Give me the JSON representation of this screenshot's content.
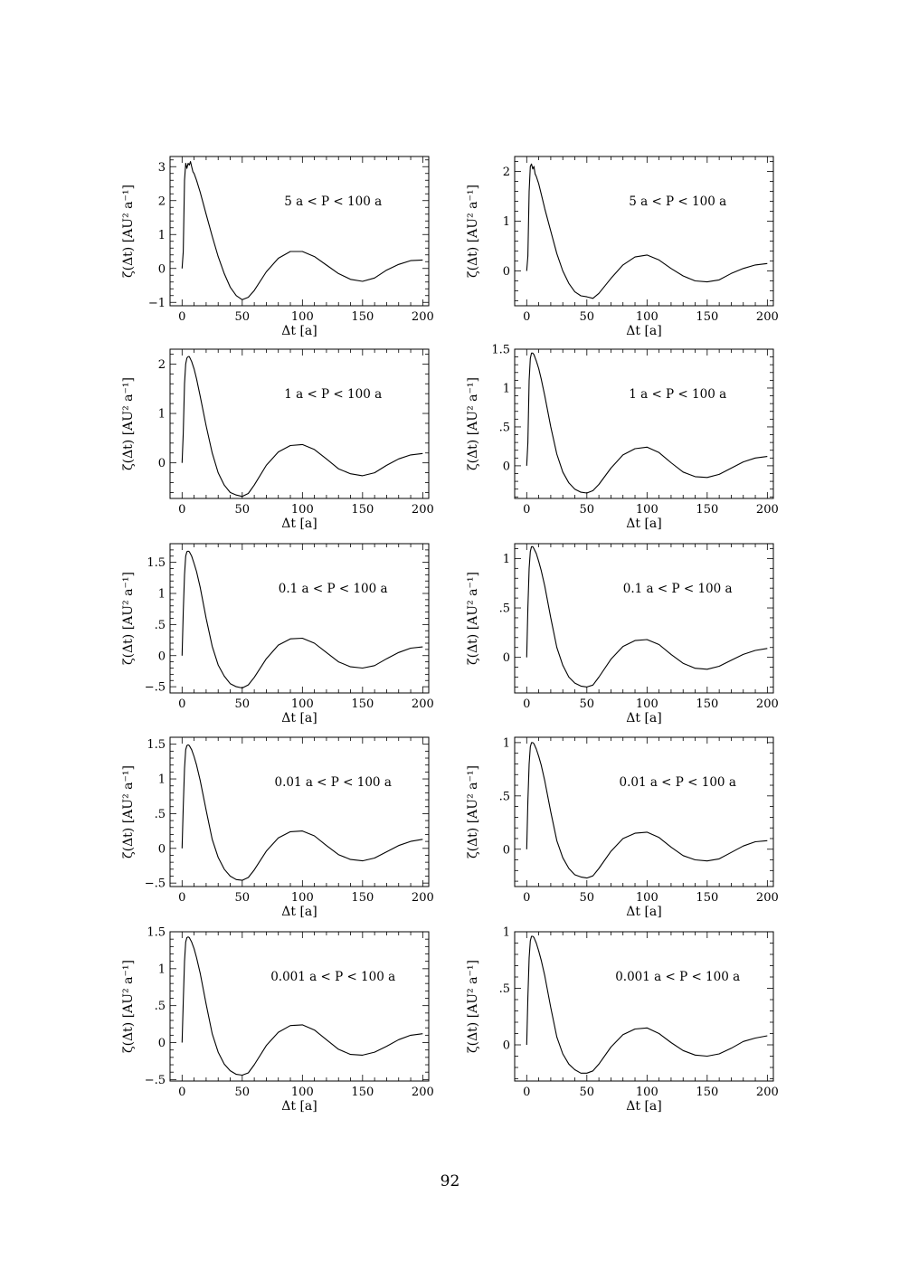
{
  "page": {
    "number": "92"
  },
  "chart_data": [
    {
      "type": "line",
      "annotation": "5 a < P < 100 a",
      "xlabel": "Δt [a]",
      "ylabel": "ζ(Δt) [AU² a⁻¹]",
      "xlim": [
        -10,
        205
      ],
      "ylim": [
        -1.1,
        3.3
      ],
      "xticks": [
        0,
        50,
        100,
        150,
        200
      ],
      "yticks": [
        -1,
        0,
        1,
        2,
        3
      ],
      "ytick_labels": [
        "−1",
        "0",
        "1",
        "2",
        "3"
      ],
      "series": [
        {
          "x": [
            0,
            1,
            2,
            3,
            4,
            5,
            6,
            7,
            8,
            9,
            10,
            12,
            15,
            20,
            25,
            30,
            35,
            40,
            45,
            50,
            55,
            60,
            70,
            80,
            90,
            100,
            110,
            120,
            130,
            140,
            150,
            160,
            170,
            180,
            190,
            200
          ],
          "y": [
            0,
            0.5,
            2.6,
            3.1,
            2.95,
            3.1,
            3.05,
            3.15,
            3.0,
            2.85,
            2.8,
            2.6,
            2.25,
            1.6,
            0.95,
            0.35,
            -0.15,
            -0.55,
            -0.8,
            -0.92,
            -0.85,
            -0.65,
            -0.1,
            0.3,
            0.5,
            0.5,
            0.35,
            0.1,
            -0.15,
            -0.32,
            -0.38,
            -0.28,
            -0.05,
            0.12,
            0.23,
            0.25
          ]
        }
      ]
    },
    {
      "type": "line",
      "annotation": "5 a < P < 100 a",
      "xlabel": "Δt [a]",
      "ylabel": "ζ(Δt) [AU² a⁻¹]",
      "xlim": [
        -10,
        205
      ],
      "ylim": [
        -0.7,
        2.3
      ],
      "xticks": [
        0,
        50,
        100,
        150,
        200
      ],
      "yticks": [
        0,
        1,
        2
      ],
      "ytick_labels": [
        "0",
        "1",
        "2"
      ],
      "series": [
        {
          "x": [
            0,
            1,
            2,
            3,
            4,
            5,
            6,
            7,
            8,
            10,
            12,
            15,
            20,
            25,
            30,
            35,
            40,
            45,
            50,
            55,
            60,
            70,
            80,
            90,
            100,
            110,
            120,
            130,
            140,
            150,
            160,
            170,
            180,
            190,
            200
          ],
          "y": [
            0,
            0.3,
            1.6,
            2.1,
            2.15,
            2.05,
            2.1,
            1.95,
            1.9,
            1.75,
            1.55,
            1.25,
            0.8,
            0.35,
            0.0,
            -0.25,
            -0.42,
            -0.5,
            -0.52,
            -0.55,
            -0.45,
            -0.15,
            0.12,
            0.28,
            0.32,
            0.22,
            0.05,
            -0.1,
            -0.2,
            -0.22,
            -0.18,
            -0.05,
            0.05,
            0.12,
            0.15
          ]
        }
      ]
    },
    {
      "type": "line",
      "annotation": "1 a < P < 100 a",
      "xlabel": "Δt [a]",
      "ylabel": "ζ(Δt) [AU² a⁻¹]",
      "xlim": [
        -10,
        205
      ],
      "ylim": [
        -0.72,
        2.3
      ],
      "xticks": [
        0,
        50,
        100,
        150,
        200
      ],
      "yticks": [
        0,
        1,
        2
      ],
      "ytick_labels": [
        "0",
        "1",
        "2"
      ],
      "series": [
        {
          "x": [
            0,
            1,
            2,
            3,
            4,
            5,
            6,
            8,
            10,
            12,
            15,
            20,
            25,
            30,
            35,
            40,
            45,
            50,
            55,
            60,
            70,
            80,
            90,
            100,
            110,
            120,
            130,
            140,
            150,
            160,
            170,
            180,
            190,
            200
          ],
          "y": [
            0,
            0.6,
            1.6,
            2.0,
            2.12,
            2.15,
            2.15,
            2.05,
            1.9,
            1.7,
            1.35,
            0.75,
            0.2,
            -0.2,
            -0.45,
            -0.6,
            -0.65,
            -0.68,
            -0.62,
            -0.45,
            -0.05,
            0.22,
            0.35,
            0.37,
            0.27,
            0.08,
            -0.12,
            -0.22,
            -0.26,
            -0.2,
            -0.05,
            0.08,
            0.16,
            0.19
          ]
        }
      ]
    },
    {
      "type": "line",
      "annotation": "1 a < P < 100 a",
      "xlabel": "Δt [a]",
      "ylabel": "ζ(Δt) [AU² a⁻¹]",
      "xlim": [
        -10,
        205
      ],
      "ylim": [
        -0.42,
        1.5
      ],
      "xticks": [
        0,
        50,
        100,
        150,
        200
      ],
      "yticks": [
        0,
        0.5,
        1,
        1.5
      ],
      "ytick_labels": [
        "0",
        ".5",
        "1",
        "1.5"
      ],
      "series": [
        {
          "x": [
            0,
            1,
            2,
            3,
            4,
            5,
            6,
            8,
            10,
            12,
            15,
            20,
            25,
            30,
            35,
            40,
            45,
            50,
            55,
            60,
            70,
            80,
            90,
            100,
            110,
            120,
            130,
            140,
            150,
            160,
            170,
            180,
            190,
            200
          ],
          "y": [
            0,
            0.3,
            1.1,
            1.38,
            1.45,
            1.45,
            1.43,
            1.35,
            1.25,
            1.12,
            0.9,
            0.5,
            0.15,
            -0.08,
            -0.22,
            -0.3,
            -0.34,
            -0.35,
            -0.32,
            -0.24,
            -0.03,
            0.14,
            0.22,
            0.24,
            0.17,
            0.04,
            -0.08,
            -0.14,
            -0.15,
            -0.11,
            -0.03,
            0.05,
            0.1,
            0.12
          ]
        }
      ]
    },
    {
      "type": "line",
      "annotation": "0.1 a < P < 100 a",
      "xlabel": "Δt [a]",
      "ylabel": "ζ(Δt) [AU² a⁻¹]",
      "xlim": [
        -10,
        205
      ],
      "ylim": [
        -0.6,
        1.8
      ],
      "xticks": [
        0,
        50,
        100,
        150,
        200
      ],
      "yticks": [
        -0.5,
        0,
        0.5,
        1,
        1.5
      ],
      "ytick_labels": [
        "−.5",
        "0",
        ".5",
        "1",
        "1.5"
      ],
      "series": [
        {
          "x": [
            0,
            1,
            2,
            3,
            4,
            5,
            6,
            8,
            10,
            12,
            15,
            20,
            25,
            30,
            35,
            40,
            45,
            50,
            55,
            60,
            70,
            80,
            90,
            100,
            110,
            120,
            130,
            140,
            150,
            160,
            170,
            180,
            190,
            200
          ],
          "y": [
            0,
            0.7,
            1.3,
            1.6,
            1.67,
            1.68,
            1.67,
            1.6,
            1.48,
            1.35,
            1.1,
            0.6,
            0.15,
            -0.15,
            -0.33,
            -0.45,
            -0.5,
            -0.52,
            -0.47,
            -0.35,
            -0.05,
            0.17,
            0.27,
            0.28,
            0.2,
            0.05,
            -0.1,
            -0.18,
            -0.2,
            -0.16,
            -0.05,
            0.05,
            0.12,
            0.14
          ]
        }
      ]
    },
    {
      "type": "line",
      "annotation": "0.1 a < P < 100 a",
      "xlabel": "Δt [a]",
      "ylabel": "ζ(Δt) [AU² a⁻¹]",
      "xlim": [
        -10,
        205
      ],
      "ylim": [
        -0.36,
        1.15
      ],
      "xticks": [
        0,
        50,
        100,
        150,
        200
      ],
      "yticks": [
        0,
        0.5,
        1
      ],
      "ytick_labels": [
        "0",
        ".5",
        "1"
      ],
      "series": [
        {
          "x": [
            0,
            1,
            2,
            3,
            4,
            5,
            6,
            8,
            10,
            12,
            15,
            20,
            25,
            30,
            35,
            40,
            45,
            50,
            55,
            60,
            70,
            80,
            90,
            100,
            110,
            120,
            130,
            140,
            150,
            160,
            170,
            180,
            190,
            200
          ],
          "y": [
            0,
            0.5,
            0.9,
            1.07,
            1.12,
            1.12,
            1.1,
            1.05,
            0.97,
            0.88,
            0.72,
            0.4,
            0.1,
            -0.08,
            -0.2,
            -0.26,
            -0.29,
            -0.3,
            -0.28,
            -0.2,
            -0.02,
            0.11,
            0.17,
            0.18,
            0.13,
            0.03,
            -0.06,
            -0.11,
            -0.12,
            -0.09,
            -0.03,
            0.03,
            0.07,
            0.09
          ]
        }
      ]
    },
    {
      "type": "line",
      "annotation": "0.01 a < P < 100 a",
      "xlabel": "Δt [a]",
      "ylabel": "ζ(Δt) [AU² a⁻¹]",
      "xlim": [
        -10,
        205
      ],
      "ylim": [
        -0.55,
        1.6
      ],
      "xticks": [
        0,
        50,
        100,
        150,
        200
      ],
      "yticks": [
        -0.5,
        0,
        0.5,
        1,
        1.5
      ],
      "ytick_labels": [
        "−.5",
        "0",
        ".5",
        "1",
        "1.5"
      ],
      "series": [
        {
          "x": [
            0,
            1,
            2,
            3,
            4,
            5,
            6,
            8,
            10,
            12,
            15,
            20,
            25,
            30,
            35,
            40,
            45,
            50,
            55,
            60,
            70,
            80,
            90,
            100,
            110,
            120,
            130,
            140,
            150,
            160,
            170,
            180,
            190,
            200
          ],
          "y": [
            0,
            0.6,
            1.15,
            1.42,
            1.48,
            1.49,
            1.48,
            1.42,
            1.32,
            1.2,
            0.98,
            0.55,
            0.13,
            -0.13,
            -0.3,
            -0.4,
            -0.45,
            -0.46,
            -0.42,
            -0.31,
            -0.04,
            0.15,
            0.24,
            0.25,
            0.18,
            0.04,
            -0.09,
            -0.16,
            -0.18,
            -0.14,
            -0.05,
            0.04,
            0.1,
            0.13
          ]
        }
      ]
    },
    {
      "type": "line",
      "annotation": "0.01 a < P < 100 a",
      "xlabel": "Δt [a]",
      "ylabel": "ζ(Δt) [AU² a⁻¹]",
      "xlim": [
        -10,
        205
      ],
      "ylim": [
        -0.35,
        1.05
      ],
      "xticks": [
        0,
        50,
        100,
        150,
        200
      ],
      "yticks": [
        0,
        0.5,
        1
      ],
      "ytick_labels": [
        "0",
        ".5",
        "1"
      ],
      "series": [
        {
          "x": [
            0,
            1,
            2,
            3,
            4,
            5,
            6,
            8,
            10,
            12,
            15,
            20,
            25,
            30,
            35,
            40,
            45,
            50,
            55,
            60,
            70,
            80,
            90,
            100,
            110,
            120,
            130,
            140,
            150,
            160,
            170,
            180,
            190,
            200
          ],
          "y": [
            0,
            0.45,
            0.8,
            0.96,
            1.0,
            1.0,
            0.99,
            0.94,
            0.87,
            0.79,
            0.64,
            0.35,
            0.08,
            -0.08,
            -0.18,
            -0.24,
            -0.26,
            -0.27,
            -0.25,
            -0.18,
            -0.02,
            0.1,
            0.15,
            0.16,
            0.11,
            0.02,
            -0.06,
            -0.1,
            -0.11,
            -0.09,
            -0.03,
            0.03,
            0.07,
            0.08
          ]
        }
      ]
    },
    {
      "type": "line",
      "annotation": "0.001 a < P < 100 a",
      "xlabel": "Δt [a]",
      "ylabel": "ζ(Δt) [AU² a⁻¹]",
      "xlim": [
        -10,
        205
      ],
      "ylim": [
        -0.52,
        1.5
      ],
      "xticks": [
        0,
        50,
        100,
        150,
        200
      ],
      "yticks": [
        -0.5,
        0,
        0.5,
        1,
        1.5
      ],
      "ytick_labels": [
        "−.5",
        "0",
        ".5",
        "1",
        "1.5"
      ],
      "series": [
        {
          "x": [
            0,
            1,
            2,
            3,
            4,
            5,
            6,
            8,
            10,
            12,
            15,
            20,
            25,
            30,
            35,
            40,
            45,
            50,
            55,
            60,
            70,
            80,
            90,
            100,
            110,
            120,
            130,
            140,
            150,
            160,
            170,
            180,
            190,
            200
          ],
          "y": [
            0,
            0.55,
            1.1,
            1.36,
            1.42,
            1.43,
            1.42,
            1.36,
            1.27,
            1.15,
            0.94,
            0.52,
            0.12,
            -0.13,
            -0.29,
            -0.38,
            -0.43,
            -0.44,
            -0.41,
            -0.3,
            -0.04,
            0.14,
            0.23,
            0.24,
            0.17,
            0.04,
            -0.09,
            -0.16,
            -0.17,
            -0.13,
            -0.05,
            0.04,
            0.1,
            0.12
          ]
        }
      ]
    },
    {
      "type": "line",
      "annotation": "0.001 a < P < 100 a",
      "xlabel": "Δt [a]",
      "ylabel": "ζ(Δt) [AU² a⁻¹]",
      "xlim": [
        -10,
        205
      ],
      "ylim": [
        -0.32,
        1.0
      ],
      "xticks": [
        0,
        50,
        100,
        150,
        200
      ],
      "yticks": [
        0,
        0.5,
        1
      ],
      "ytick_labels": [
        "0",
        ".5",
        "1"
      ],
      "series": [
        {
          "x": [
            0,
            1,
            2,
            3,
            4,
            5,
            6,
            8,
            10,
            12,
            15,
            20,
            25,
            30,
            35,
            40,
            45,
            50,
            55,
            60,
            70,
            80,
            90,
            100,
            110,
            120,
            130,
            140,
            150,
            160,
            170,
            180,
            190,
            200
          ],
          "y": [
            0,
            0.42,
            0.77,
            0.92,
            0.96,
            0.96,
            0.95,
            0.9,
            0.83,
            0.75,
            0.61,
            0.33,
            0.07,
            -0.08,
            -0.17,
            -0.22,
            -0.25,
            -0.25,
            -0.23,
            -0.17,
            -0.02,
            0.09,
            0.14,
            0.15,
            0.1,
            0.02,
            -0.05,
            -0.09,
            -0.1,
            -0.08,
            -0.03,
            0.03,
            0.06,
            0.08
          ]
        }
      ]
    }
  ]
}
